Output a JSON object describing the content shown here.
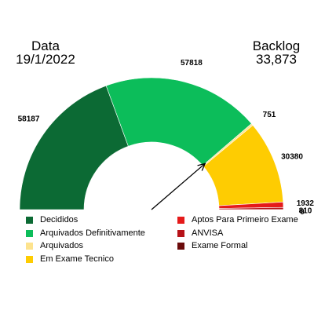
{
  "header": {
    "date_label": "Data",
    "date_value": "19/1/2022",
    "backlog_label": "Backlog",
    "backlog_value": "33,873"
  },
  "chart_data": {
    "type": "gauge-donut",
    "series": [
      {
        "name": "Decididos",
        "value": 58187,
        "label": "58187",
        "color": "#0c6a34"
      },
      {
        "name": "Arquivados Definitivamente",
        "value": 57818,
        "label": "57818",
        "color": "#0cbd5a"
      },
      {
        "name": "Arquivados",
        "value": 751,
        "label": "751",
        "color": "#fde38e"
      },
      {
        "name": "Em Exame Tecnico",
        "value": 30380,
        "label": "30380",
        "color": "#fecc02"
      },
      {
        "name": "Aptos Para Primeiro Exame",
        "value": 1932,
        "label": "1932",
        "color": "#e51a1a"
      },
      {
        "name": "ANVISA",
        "value": 810,
        "label": "810",
        "color": "#b71218"
      },
      {
        "name": "Exame Formal",
        "value": 0,
        "label": "0",
        "color": "#6b0b0b"
      }
    ],
    "needle_value": 115999
  }
}
